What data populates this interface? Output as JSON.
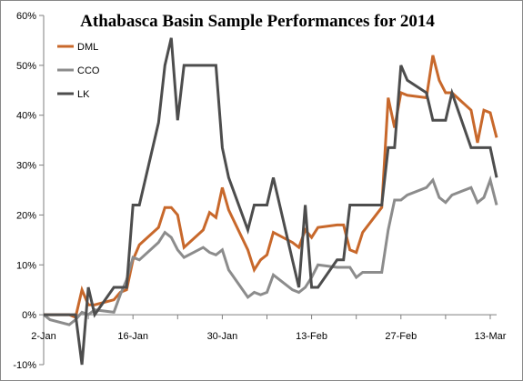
{
  "chart_data": {
    "type": "line",
    "title": "Athabasca Basin Sample Performances for 2014",
    "xlabel": "",
    "ylabel": "",
    "x_tick_labels": [
      "2-Jan",
      "16-Jan",
      "30-Jan",
      "13-Feb",
      "27-Feb",
      "13-Mar"
    ],
    "x_tick_dates": [
      "2014-01-02",
      "2014-01-16",
      "2014-01-30",
      "2014-02-13",
      "2014-02-27",
      "2014-03-13"
    ],
    "xlim": [
      "2014-01-02",
      "2014-03-14"
    ],
    "y_tick_labels": [
      "-10%",
      "0%",
      "10%",
      "20%",
      "30%",
      "40%",
      "50%",
      "60%"
    ],
    "ylim": [
      -10,
      60
    ],
    "y_unit": "%",
    "grid": false,
    "legend_position": "top-left",
    "series": [
      {
        "name": "DML",
        "color": "#c8682b",
        "points": [
          [
            "2014-01-02",
            0
          ],
          [
            "2014-01-03",
            0
          ],
          [
            "2014-01-06",
            0
          ],
          [
            "2014-01-07",
            -0.5
          ],
          [
            "2014-01-08",
            5
          ],
          [
            "2014-01-09",
            2
          ],
          [
            "2014-01-10",
            2
          ],
          [
            "2014-01-13",
            3
          ],
          [
            "2014-01-14",
            4.5
          ],
          [
            "2014-01-15",
            5
          ],
          [
            "2014-01-16",
            11
          ],
          [
            "2014-01-17",
            14
          ],
          [
            "2014-01-20",
            17.5
          ],
          [
            "2014-01-21",
            21.5
          ],
          [
            "2014-01-22",
            21.5
          ],
          [
            "2014-01-23",
            20
          ],
          [
            "2014-01-24",
            13.5
          ],
          [
            "2014-01-27",
            17
          ],
          [
            "2014-01-28",
            20.5
          ],
          [
            "2014-01-29",
            19.5
          ],
          [
            "2014-01-30",
            25.5
          ],
          [
            "2014-01-31",
            21
          ],
          [
            "2014-02-03",
            13
          ],
          [
            "2014-02-04",
            9
          ],
          [
            "2014-02-05",
            11
          ],
          [
            "2014-02-06",
            12
          ],
          [
            "2014-02-07",
            16.5
          ],
          [
            "2014-02-10",
            14.5
          ],
          [
            "2014-02-11",
            13.5
          ],
          [
            "2014-02-12",
            17
          ],
          [
            "2014-02-13",
            15.5
          ],
          [
            "2014-02-14",
            17.5
          ],
          [
            "2014-02-17",
            18
          ],
          [
            "2014-02-18",
            18
          ],
          [
            "2014-02-19",
            13
          ],
          [
            "2014-02-20",
            12.5
          ],
          [
            "2014-02-21",
            16.5
          ],
          [
            "2014-02-24",
            21.5
          ],
          [
            "2014-02-25",
            43.5
          ],
          [
            "2014-02-26",
            37.5
          ],
          [
            "2014-02-27",
            44.5
          ],
          [
            "2014-02-28",
            44
          ],
          [
            "2014-03-03",
            43.5
          ],
          [
            "2014-03-04",
            52
          ],
          [
            "2014-03-05",
            47
          ],
          [
            "2014-03-06",
            44.5
          ],
          [
            "2014-03-07",
            44.5
          ],
          [
            "2014-03-10",
            41
          ],
          [
            "2014-03-11",
            34.5
          ],
          [
            "2014-03-12",
            41
          ],
          [
            "2014-03-13",
            40.5
          ],
          [
            "2014-03-14",
            35.5
          ]
        ]
      },
      {
        "name": "CCO",
        "color": "#8c8c8c",
        "points": [
          [
            "2014-01-02",
            0
          ],
          [
            "2014-01-03",
            -1
          ],
          [
            "2014-01-06",
            -2
          ],
          [
            "2014-01-07",
            -1
          ],
          [
            "2014-01-08",
            0.5
          ],
          [
            "2014-01-09",
            0
          ],
          [
            "2014-01-10",
            1
          ],
          [
            "2014-01-13",
            0.5
          ],
          [
            "2014-01-14",
            4
          ],
          [
            "2014-01-15",
            7
          ],
          [
            "2014-01-16",
            11.5
          ],
          [
            "2014-01-17",
            11
          ],
          [
            "2014-01-20",
            14.5
          ],
          [
            "2014-01-21",
            16.5
          ],
          [
            "2014-01-22",
            15.5
          ],
          [
            "2014-01-23",
            13
          ],
          [
            "2014-01-24",
            11.5
          ],
          [
            "2014-01-27",
            13.5
          ],
          [
            "2014-01-28",
            12.5
          ],
          [
            "2014-01-29",
            12
          ],
          [
            "2014-01-30",
            13
          ],
          [
            "2014-01-31",
            9
          ],
          [
            "2014-02-03",
            3.5
          ],
          [
            "2014-02-04",
            4.5
          ],
          [
            "2014-02-05",
            4
          ],
          [
            "2014-02-06",
            4.5
          ],
          [
            "2014-02-07",
            8
          ],
          [
            "2014-02-10",
            5
          ],
          [
            "2014-02-11",
            4.5
          ],
          [
            "2014-02-12",
            5.5
          ],
          [
            "2014-02-13",
            7.5
          ],
          [
            "2014-02-14",
            10
          ],
          [
            "2014-02-17",
            9.5
          ],
          [
            "2014-02-18",
            9.5
          ],
          [
            "2014-02-19",
            9.5
          ],
          [
            "2014-02-20",
            7.5
          ],
          [
            "2014-02-21",
            8.5
          ],
          [
            "2014-02-24",
            8.5
          ],
          [
            "2014-02-25",
            17
          ],
          [
            "2014-02-26",
            23
          ],
          [
            "2014-02-27",
            23
          ],
          [
            "2014-02-28",
            24
          ],
          [
            "2014-03-03",
            25.5
          ],
          [
            "2014-03-04",
            27
          ],
          [
            "2014-03-05",
            23.5
          ],
          [
            "2014-03-06",
            22.5
          ],
          [
            "2014-03-07",
            24
          ],
          [
            "2014-03-10",
            25.5
          ],
          [
            "2014-03-11",
            22.5
          ],
          [
            "2014-03-12",
            23.5
          ],
          [
            "2014-03-13",
            27
          ],
          [
            "2014-03-14",
            22
          ]
        ]
      },
      {
        "name": "LK",
        "color": "#4d4d4d",
        "points": [
          [
            "2014-01-02",
            0
          ],
          [
            "2014-01-03",
            0
          ],
          [
            "2014-01-06",
            0
          ],
          [
            "2014-01-07",
            0
          ],
          [
            "2014-01-08",
            -10
          ],
          [
            "2014-01-09",
            5.5
          ],
          [
            "2014-01-10",
            0
          ],
          [
            "2014-01-13",
            5.5
          ],
          [
            "2014-01-14",
            5.5
          ],
          [
            "2014-01-15",
            5.5
          ],
          [
            "2014-01-16",
            22
          ],
          [
            "2014-01-17",
            22
          ],
          [
            "2014-01-20",
            38.5
          ],
          [
            "2014-01-21",
            50
          ],
          [
            "2014-01-22",
            55.5
          ],
          [
            "2014-01-23",
            39
          ],
          [
            "2014-01-24",
            50
          ],
          [
            "2014-01-27",
            50
          ],
          [
            "2014-01-28",
            50
          ],
          [
            "2014-01-29",
            50
          ],
          [
            "2014-01-30",
            33.5
          ],
          [
            "2014-01-31",
            27.5
          ],
          [
            "2014-02-03",
            17
          ],
          [
            "2014-02-04",
            22
          ],
          [
            "2014-02-05",
            22
          ],
          [
            "2014-02-06",
            22
          ],
          [
            "2014-02-07",
            27.5
          ],
          [
            "2014-02-10",
            11
          ],
          [
            "2014-02-11",
            5.5
          ],
          [
            "2014-02-12",
            22
          ],
          [
            "2014-02-13",
            5.5
          ],
          [
            "2014-02-14",
            5.5
          ],
          [
            "2014-02-17",
            11
          ],
          [
            "2014-02-18",
            11
          ],
          [
            "2014-02-19",
            22
          ],
          [
            "2014-02-20",
            22
          ],
          [
            "2014-02-21",
            22
          ],
          [
            "2014-02-24",
            22
          ],
          [
            "2014-02-25",
            33.5
          ],
          [
            "2014-02-26",
            33.5
          ],
          [
            "2014-02-27",
            50
          ],
          [
            "2014-02-28",
            47
          ],
          [
            "2014-03-03",
            44.5
          ],
          [
            "2014-03-04",
            39
          ],
          [
            "2014-03-05",
            39
          ],
          [
            "2014-03-06",
            39
          ],
          [
            "2014-03-07",
            44.5
          ],
          [
            "2014-03-10",
            33.5
          ],
          [
            "2014-03-11",
            33.5
          ],
          [
            "2014-03-12",
            33.5
          ],
          [
            "2014-03-13",
            33.5
          ],
          [
            "2014-03-14",
            27.5
          ]
        ]
      }
    ]
  }
}
